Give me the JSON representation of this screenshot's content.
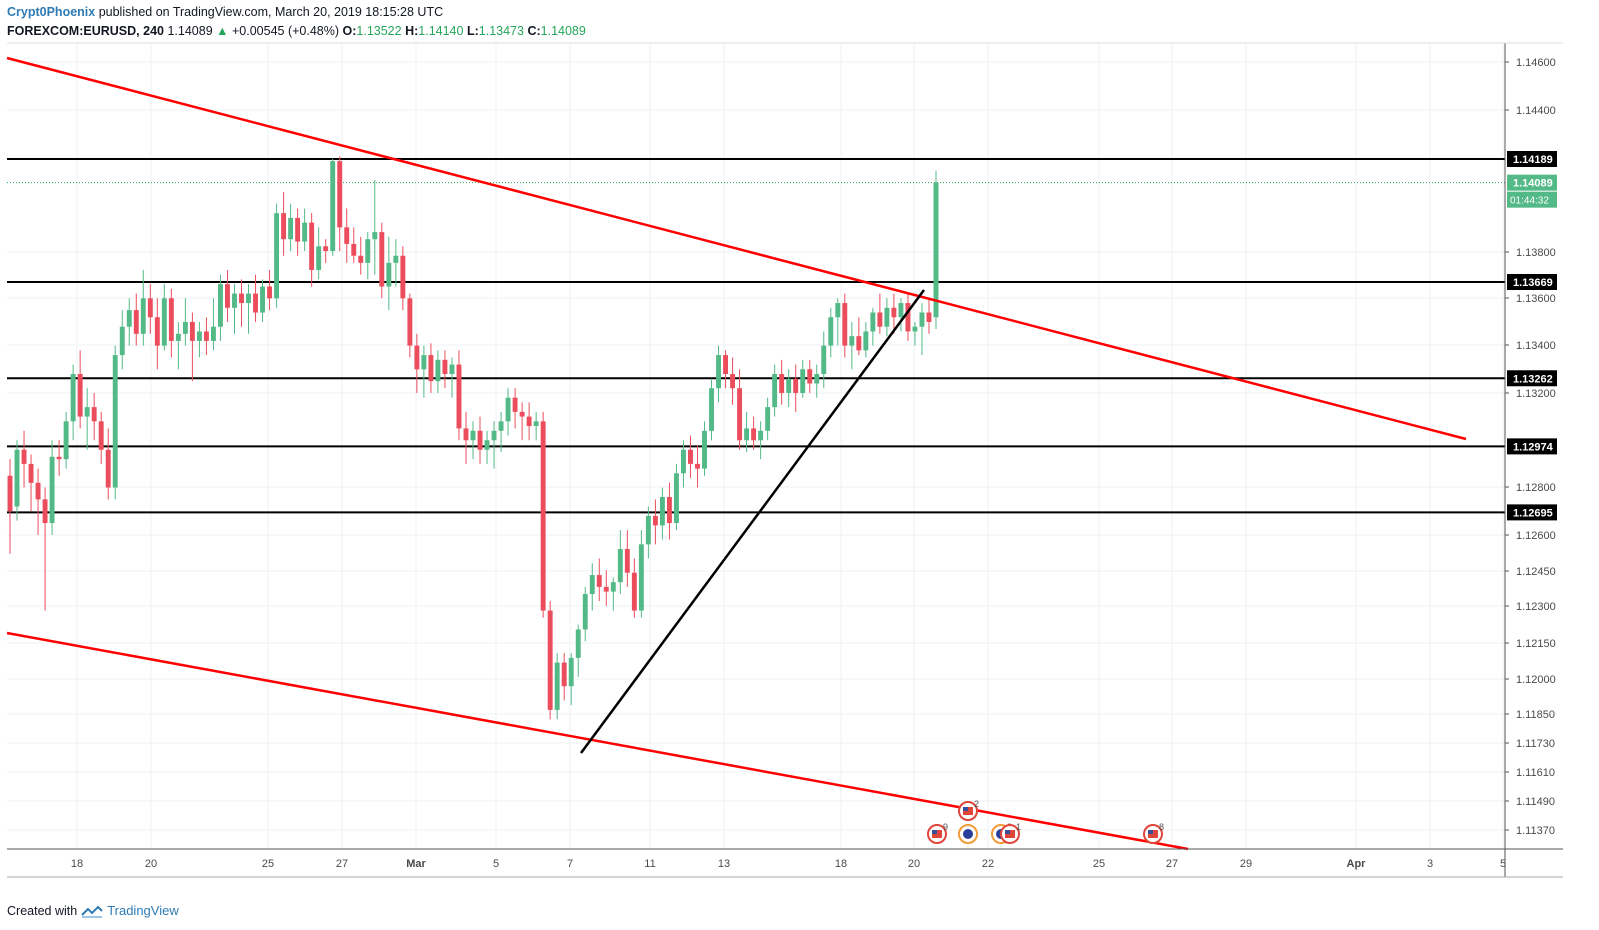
{
  "header": {
    "author": "Crypt0Phoenix",
    "published": "published on TradingView.com, March 20, 2019 18:15:28 UTC",
    "symbol": "FOREXCOM:EURUSD, 240",
    "last": "1.14089",
    "change_arrow": "▲",
    "change": "+0.00545 (+0.48%)",
    "o_label": "O:",
    "o_value": "1.13522",
    "h_label": "H:",
    "h_value": "1.14140",
    "l_label": "L:",
    "l_value": "1.13473",
    "c_label": "C:",
    "c_value": "1.14089"
  },
  "footer": {
    "created_with": "Created with",
    "brand": "TradingView",
    "logo_icon": "tradingview-logo-icon"
  },
  "colors": {
    "up": "#53b987",
    "down": "#eb4d5c",
    "trendline": "#ff0000",
    "level": "#000000",
    "grid": "#eef1f4",
    "current_price": "#26a65b"
  },
  "chart_data": {
    "type": "candlestick",
    "title": "",
    "y_axis": {
      "range": [
        1.113,
        1.147
      ],
      "ticks": [
        "1.14600",
        "1.14400",
        "1.13800",
        "1.13600",
        "1.13400",
        "1.13200",
        "1.12800",
        "1.12600",
        "1.12450",
        "1.12300",
        "1.12150",
        "1.12000",
        "1.11850",
        "1.11730",
        "1.11610",
        "1.11490",
        "1.11370"
      ]
    },
    "x_axis": {
      "ticks": [
        "18",
        "20",
        "25",
        "27",
        "Mar",
        "5",
        "7",
        "11",
        "13",
        "18",
        "20",
        "22",
        "25",
        "27",
        "29",
        "Apr",
        "3",
        "5"
      ]
    },
    "horizontal_levels": [
      "1.14189",
      "1.13669",
      "1.13262",
      "1.12974",
      "1.12695"
    ],
    "current_price": "1.14089",
    "countdown": "01:44:32",
    "trendlines_note": "",
    "trendlines": [
      {
        "color": "red",
        "from": [
          "Feb 13",
          1.1462
        ],
        "to": [
          "Apr 4",
          1.13
        ]
      },
      {
        "color": "red",
        "from": [
          "Feb 13",
          1.122
        ],
        "to": [
          "Mar 27",
          1.113
        ]
      },
      {
        "color": "black",
        "from": [
          "Mar 7",
          1.117
        ],
        "to": [
          "Mar 20",
          1.1364
        ]
      }
    ],
    "events": [
      {
        "flag": "US",
        "count": "9"
      },
      {
        "flag": "EU",
        "count": ""
      },
      {
        "flag": "US",
        "count": "2"
      },
      {
        "flag": "EU",
        "count": "3"
      },
      {
        "flag": "US",
        "count": "1"
      },
      {
        "flag": "US",
        "count": "8"
      }
    ],
    "candles": [
      [
        1.1285,
        1.1292,
        1.1252,
        1.127
      ],
      [
        1.1272,
        1.13,
        1.1266,
        1.1296
      ],
      [
        1.1296,
        1.1304,
        1.128,
        1.129
      ],
      [
        1.129,
        1.1294,
        1.127,
        1.1282
      ],
      [
        1.1282,
        1.1288,
        1.126,
        1.1275
      ],
      [
        1.1275,
        1.128,
        1.1228,
        1.1265
      ],
      [
        1.1265,
        1.13,
        1.126,
        1.1293
      ],
      [
        1.1293,
        1.13,
        1.1285,
        1.1292
      ],
      [
        1.1292,
        1.1312,
        1.1288,
        1.1308
      ],
      [
        1.1308,
        1.1332,
        1.13,
        1.1328
      ],
      [
        1.1328,
        1.1338,
        1.1305,
        1.131
      ],
      [
        1.131,
        1.1322,
        1.1296,
        1.1314
      ],
      [
        1.1314,
        1.132,
        1.13,
        1.1308
      ],
      [
        1.1308,
        1.1312,
        1.129,
        1.1296
      ],
      [
        1.1296,
        1.1305,
        1.1275,
        1.128
      ],
      [
        1.128,
        1.134,
        1.1275,
        1.1336
      ],
      [
        1.1336,
        1.1355,
        1.133,
        1.1348
      ],
      [
        1.1348,
        1.136,
        1.134,
        1.1355
      ],
      [
        1.1355,
        1.1362,
        1.134,
        1.1345
      ],
      [
        1.1345,
        1.1372,
        1.134,
        1.136
      ],
      [
        1.136,
        1.1366,
        1.1345,
        1.1352
      ],
      [
        1.1352,
        1.136,
        1.133,
        1.134
      ],
      [
        1.134,
        1.1366,
        1.1338,
        1.136
      ],
      [
        1.136,
        1.1364,
        1.1335,
        1.1342
      ],
      [
        1.1342,
        1.135,
        1.133,
        1.1345
      ],
      [
        1.1345,
        1.136,
        1.134,
        1.135
      ],
      [
        1.135,
        1.1354,
        1.1325,
        1.1342
      ],
      [
        1.1342,
        1.135,
        1.1335,
        1.1346
      ],
      [
        1.1346,
        1.1352,
        1.1336,
        1.1342
      ],
      [
        1.1342,
        1.136,
        1.1338,
        1.1348
      ],
      [
        1.1348,
        1.137,
        1.1342,
        1.1366
      ],
      [
        1.1366,
        1.1372,
        1.135,
        1.1356
      ],
      [
        1.1356,
        1.1366,
        1.1345,
        1.1362
      ],
      [
        1.1362,
        1.1368,
        1.1348,
        1.1358
      ],
      [
        1.1358,
        1.1366,
        1.1345,
        1.1362
      ],
      [
        1.1362,
        1.137,
        1.135,
        1.1354
      ],
      [
        1.1354,
        1.1368,
        1.135,
        1.1365
      ],
      [
        1.1365,
        1.1372,
        1.1355,
        1.136
      ],
      [
        1.136,
        1.14,
        1.1356,
        1.1396
      ],
      [
        1.1396,
        1.1405,
        1.1378,
        1.1385
      ],
      [
        1.1385,
        1.14,
        1.138,
        1.1394
      ],
      [
        1.1394,
        1.1398,
        1.1378,
        1.1384
      ],
      [
        1.1384,
        1.1398,
        1.138,
        1.1392
      ],
      [
        1.1392,
        1.1396,
        1.1365,
        1.1372
      ],
      [
        1.1372,
        1.139,
        1.1368,
        1.1382
      ],
      [
        1.1382,
        1.1385,
        1.1375,
        1.138
      ],
      [
        1.138,
        1.1419,
        1.1378,
        1.1418
      ],
      [
        1.1418,
        1.142,
        1.138,
        1.139
      ],
      [
        1.139,
        1.1398,
        1.1375,
        1.1383
      ],
      [
        1.1383,
        1.139,
        1.1375,
        1.1378
      ],
      [
        1.1378,
        1.1386,
        1.137,
        1.1375
      ],
      [
        1.1375,
        1.1388,
        1.1368,
        1.1385
      ],
      [
        1.1385,
        1.141,
        1.137,
        1.1388
      ],
      [
        1.1388,
        1.1392,
        1.136,
        1.1365
      ],
      [
        1.1365,
        1.1386,
        1.1355,
        1.1375
      ],
      [
        1.1375,
        1.1385,
        1.1365,
        1.1378
      ],
      [
        1.1378,
        1.1382,
        1.1355,
        1.136
      ],
      [
        1.136,
        1.1362,
        1.1335,
        1.134
      ],
      [
        1.134,
        1.1345,
        1.132,
        1.133
      ],
      [
        1.133,
        1.134,
        1.1318,
        1.1336
      ],
      [
        1.1336,
        1.1341,
        1.132,
        1.1325
      ],
      [
        1.1325,
        1.1338,
        1.132,
        1.1334
      ],
      [
        1.1334,
        1.1338,
        1.1322,
        1.1328
      ],
      [
        1.1328,
        1.1335,
        1.1318,
        1.1332
      ],
      [
        1.1332,
        1.1338,
        1.13,
        1.1305
      ],
      [
        1.1305,
        1.1312,
        1.129,
        1.13
      ],
      [
        1.13,
        1.1308,
        1.1292,
        1.1304
      ],
      [
        1.1304,
        1.131,
        1.129,
        1.1296
      ],
      [
        1.1296,
        1.1304,
        1.129,
        1.13
      ],
      [
        1.13,
        1.1308,
        1.1288,
        1.1304
      ],
      [
        1.1304,
        1.1312,
        1.1295,
        1.1308
      ],
      [
        1.1308,
        1.1322,
        1.1302,
        1.1318
      ],
      [
        1.1318,
        1.1322,
        1.1305,
        1.1312
      ],
      [
        1.1312,
        1.1316,
        1.13,
        1.131
      ],
      [
        1.131,
        1.1316,
        1.13,
        1.1306
      ],
      [
        1.1306,
        1.1312,
        1.13,
        1.1308
      ],
      [
        1.1308,
        1.1312,
        1.1225,
        1.1228
      ],
      [
        1.1228,
        1.1232,
        1.1182,
        1.1186
      ],
      [
        1.1186,
        1.121,
        1.1182,
        1.1206
      ],
      [
        1.1206,
        1.121,
        1.119,
        1.1196
      ],
      [
        1.1196,
        1.121,
        1.1188,
        1.1208
      ],
      [
        1.1208,
        1.1222,
        1.12,
        1.122
      ],
      [
        1.122,
        1.1238,
        1.1215,
        1.1235
      ],
      [
        1.1235,
        1.1248,
        1.1228,
        1.1243
      ],
      [
        1.1243,
        1.125,
        1.1232,
        1.1238
      ],
      [
        1.1238,
        1.1245,
        1.123,
        1.1236
      ],
      [
        1.1236,
        1.1242,
        1.1228,
        1.124
      ],
      [
        1.124,
        1.1262,
        1.1235,
        1.1254
      ],
      [
        1.1254,
        1.1262,
        1.1238,
        1.1244
      ],
      [
        1.1244,
        1.125,
        1.1225,
        1.1228
      ],
      [
        1.1228,
        1.1262,
        1.1225,
        1.1256
      ],
      [
        1.1256,
        1.1272,
        1.125,
        1.1268
      ],
      [
        1.1268,
        1.1275,
        1.1256,
        1.1264
      ],
      [
        1.1264,
        1.128,
        1.1258,
        1.1276
      ],
      [
        1.1276,
        1.1282,
        1.1258,
        1.1265
      ],
      [
        1.1265,
        1.129,
        1.1262,
        1.1286
      ],
      [
        1.1286,
        1.13,
        1.128,
        1.1296
      ],
      [
        1.1296,
        1.1302,
        1.1284,
        1.129
      ],
      [
        1.129,
        1.1298,
        1.128,
        1.1288
      ],
      [
        1.1288,
        1.1308,
        1.1285,
        1.1304
      ],
      [
        1.1304,
        1.1326,
        1.13,
        1.1322
      ],
      [
        1.1322,
        1.134,
        1.1316,
        1.1336
      ],
      [
        1.1336,
        1.1338,
        1.1322,
        1.1328
      ],
      [
        1.1328,
        1.1335,
        1.1315,
        1.1322
      ],
      [
        1.1322,
        1.133,
        1.1296,
        1.13
      ],
      [
        1.13,
        1.1312,
        1.1295,
        1.1305
      ],
      [
        1.1305,
        1.131,
        1.1296,
        1.13
      ],
      [
        1.13,
        1.1308,
        1.1292,
        1.1304
      ],
      [
        1.1304,
        1.1318,
        1.13,
        1.1314
      ],
      [
        1.1314,
        1.1332,
        1.131,
        1.1328
      ],
      [
        1.1328,
        1.1334,
        1.1315,
        1.132
      ],
      [
        1.132,
        1.133,
        1.1314,
        1.1326
      ],
      [
        1.1326,
        1.1332,
        1.1312,
        1.132
      ],
      [
        1.132,
        1.1334,
        1.1318,
        1.133
      ],
      [
        1.133,
        1.1334,
        1.132,
        1.1324
      ],
      [
        1.1324,
        1.1332,
        1.1318,
        1.1328
      ],
      [
        1.1328,
        1.1346,
        1.1322,
        1.134
      ],
      [
        1.134,
        1.1356,
        1.1335,
        1.1352
      ],
      [
        1.1352,
        1.136,
        1.134,
        1.1358
      ],
      [
        1.1358,
        1.1362,
        1.1335,
        1.134
      ],
      [
        1.134,
        1.135,
        1.133,
        1.1344
      ],
      [
        1.1344,
        1.1352,
        1.1336,
        1.1338
      ],
      [
        1.1338,
        1.135,
        1.1335,
        1.1346
      ],
      [
        1.1346,
        1.1356,
        1.134,
        1.1354
      ],
      [
        1.1354,
        1.1362,
        1.1345,
        1.1348
      ],
      [
        1.1348,
        1.136,
        1.1344,
        1.1356
      ],
      [
        1.1356,
        1.1362,
        1.1345,
        1.1352
      ],
      [
        1.1352,
        1.136,
        1.1346,
        1.1358
      ],
      [
        1.1358,
        1.1362,
        1.1342,
        1.1346
      ],
      [
        1.1346,
        1.135,
        1.134,
        1.1348
      ],
      [
        1.1348,
        1.1358,
        1.1336,
        1.1354
      ],
      [
        1.1354,
        1.136,
        1.1345,
        1.135
      ],
      [
        1.1352,
        1.1414,
        1.1347,
        1.1409
      ]
    ]
  }
}
